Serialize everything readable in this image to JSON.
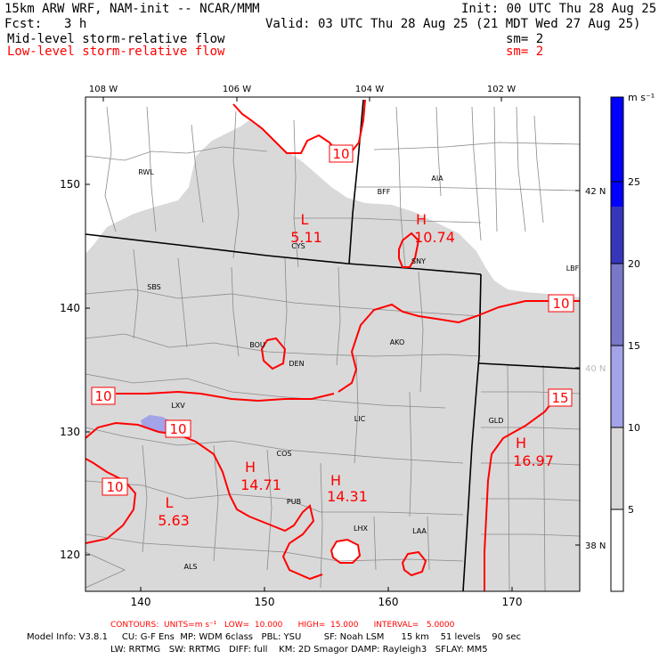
{
  "header": {
    "title": "15km ARW WRF, NAM-init -- NCAR/MMM",
    "init": "Init: 00 UTC Thu 28 Aug 25",
    "fcst_label": "Fcst:",
    "fcst_value": "3 h",
    "valid": "Valid: 03 UTC Thu 28 Aug 25 (21 MDT Wed 27 Aug 25)",
    "field1": "Mid-level storm-relative flow",
    "field1_sm": "sm= 2",
    "field2": "Low-level storm-relative flow",
    "field2_sm": "sm= 2"
  },
  "axes": {
    "top_lon": [
      "108 W",
      "106 W",
      "104 W",
      "102 W"
    ],
    "right_lat": [
      "42 N",
      "40 N",
      "38 N"
    ],
    "left_grid": [
      "150",
      "140",
      "130",
      "120"
    ],
    "bottom_grid": [
      "140",
      "150",
      "160",
      "170"
    ]
  },
  "stations": [
    "RWL",
    "BFF",
    "AIA",
    "CYS",
    "SNY",
    "LBF",
    "SBS",
    "BOU",
    "AKO",
    "DEN",
    "LXV",
    "LIC",
    "GLD",
    "COS",
    "PUB",
    "LHX",
    "LAA",
    "ALS"
  ],
  "contour_labels": [
    "10",
    "10",
    "10",
    "10",
    "15",
    "10"
  ],
  "extrema": [
    {
      "type": "L",
      "value": "5.11"
    },
    {
      "type": "H",
      "value": "10.74"
    },
    {
      "type": "H",
      "value": "14.71"
    },
    {
      "type": "H",
      "value": "14.31"
    },
    {
      "type": "L",
      "value": "5.63"
    },
    {
      "type": "H",
      "value": "16.97"
    }
  ],
  "colorbar": {
    "units": "m s⁻¹",
    "ticks": [
      "25",
      "20",
      "15",
      "10",
      "5"
    ],
    "colors": [
      "#0000ff",
      "#3636bb",
      "#7878c8",
      "#a3a3e8",
      "#d9d9d9",
      "#ffffff"
    ]
  },
  "footer": {
    "contours": "CONTOURS:  UNITS=m s⁻¹   LOW=  10.000      HIGH=  15.000      INTERVAL=   5.0000",
    "model_line1": "Model Info: V3.8.1     CU: G-F Ens  MP: WDM 6class   PBL: YSU        SF: Noah LSM      15 km    51 levels    90 sec",
    "model_line2": "LW: RRTMG   SW: RRTMG   DIFF: full    KM: 2D Smagor DAMP: Rayleigh3   SFLAY: MM5"
  }
}
